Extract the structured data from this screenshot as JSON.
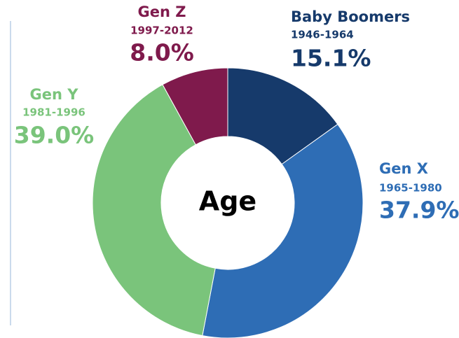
{
  "chart_data": {
    "type": "donut",
    "center_label": "Age",
    "categories": [
      "Baby Boomers",
      "Gen X",
      "Gen Y",
      "Gen Z"
    ],
    "ranges": [
      "1946-1964",
      "1965-1980",
      "1981-1996",
      "1997-2012"
    ],
    "values": [
      15.1,
      37.9,
      39.0,
      8.0
    ],
    "value_labels": [
      "15.1%",
      "37.9%",
      "39.0%",
      "8.0%"
    ],
    "colors": [
      "#163a6b",
      "#2e6db5",
      "#7ac47b",
      "#7f1a4c"
    ]
  }
}
